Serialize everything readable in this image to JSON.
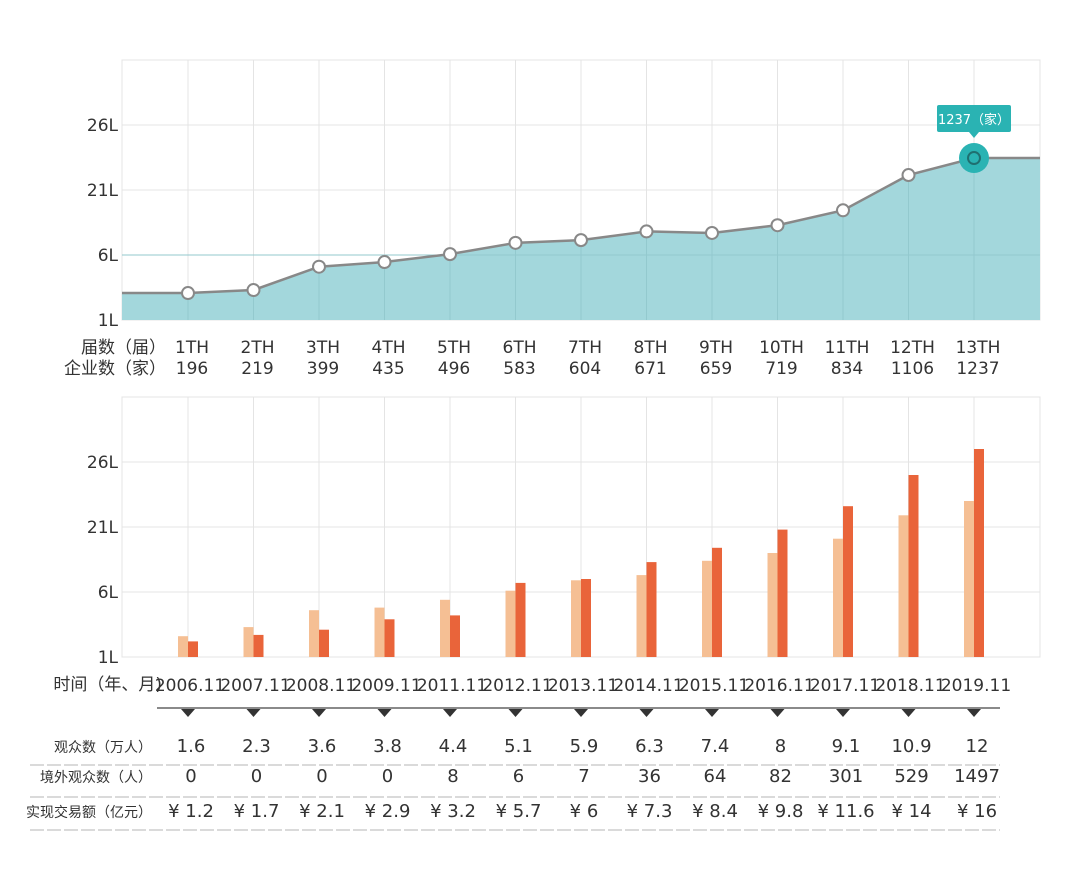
{
  "colors": {
    "area_fill": "#a3d7dc",
    "line": "#888888",
    "highlight": "#2ab3b3",
    "bar_light": "#f5bf94",
    "bar_dark": "#e9643a",
    "grid": "#e4e4e4",
    "text": "#333333"
  },
  "chart_data": [
    {
      "type": "area",
      "title": "",
      "ytick_labels": [
        "26L",
        "21L",
        "6L",
        "1L"
      ],
      "row_labels": {
        "edition": "届数（届）",
        "companies": "企业数（家）"
      },
      "categories": [
        "1TH",
        "2TH",
        "3TH",
        "4TH",
        "5TH",
        "6TH",
        "7TH",
        "8TH",
        "9TH",
        "10TH",
        "11TH",
        "12TH",
        "13TH"
      ],
      "values": [
        196,
        219,
        399,
        435,
        496,
        583,
        604,
        671,
        659,
        719,
        834,
        1106,
        1237
      ],
      "value_labels": [
        "196",
        "219",
        "399",
        "435",
        "496",
        "583",
        "604",
        "671",
        "659",
        "719",
        "834",
        "1106",
        "1237"
      ],
      "ylim": [
        -12,
        1993
      ],
      "grid": true,
      "tooltip": {
        "index": 12,
        "text": "1237（家）"
      }
    },
    {
      "type": "bar",
      "title": "",
      "ytick_labels": [
        "26L",
        "21L",
        "6L",
        "1L"
      ],
      "xlabel": "时间（年、月)",
      "categories": [
        "2006.11",
        "2007.11",
        "2008.11",
        "2009.11",
        "2011.11",
        "2012.11",
        "2013.11",
        "2014.11",
        "2015.11",
        "2016.11",
        "2017.11",
        "2018.11",
        "2019.11"
      ],
      "series": [
        {
          "name": "观众数（万人）",
          "values": [
            1.6,
            2.3,
            3.6,
            3.8,
            4.4,
            5.1,
            5.9,
            6.3,
            7.4,
            8,
            9.1,
            10.9,
            12
          ]
        },
        {
          "name": "实现交易额（亿元）",
          "values": [
            1.2,
            1.7,
            2.1,
            2.9,
            3.2,
            5.7,
            6,
            7.3,
            8.4,
            9.8,
            11.6,
            14,
            16
          ]
        }
      ],
      "ylim": [
        0,
        20
      ],
      "grid": true
    }
  ],
  "table": {
    "rows": [
      {
        "label": "观众数（万人）",
        "cells": [
          "1.6",
          "2.3",
          "3.6",
          "3.8",
          "4.4",
          "5.1",
          "5.9",
          "6.3",
          "7.4",
          "8",
          "9.1",
          "10.9",
          "12"
        ]
      },
      {
        "label": "境外观众数（人）",
        "cells": [
          "0",
          "0",
          "0",
          "0",
          "8",
          "6",
          "7",
          "36",
          "64",
          "82",
          "301",
          "529",
          "1497"
        ]
      },
      {
        "label": "实现交易额（亿元）",
        "cells": [
          "¥ 1.2",
          "¥ 1.7",
          "¥ 2.1",
          "¥ 2.9",
          "¥ 3.2",
          "¥ 5.7",
          "¥ 6",
          "¥ 7.3",
          "¥ 8.4",
          "¥ 9.8",
          "¥ 11.6",
          "¥ 14",
          "¥ 16"
        ]
      }
    ]
  }
}
